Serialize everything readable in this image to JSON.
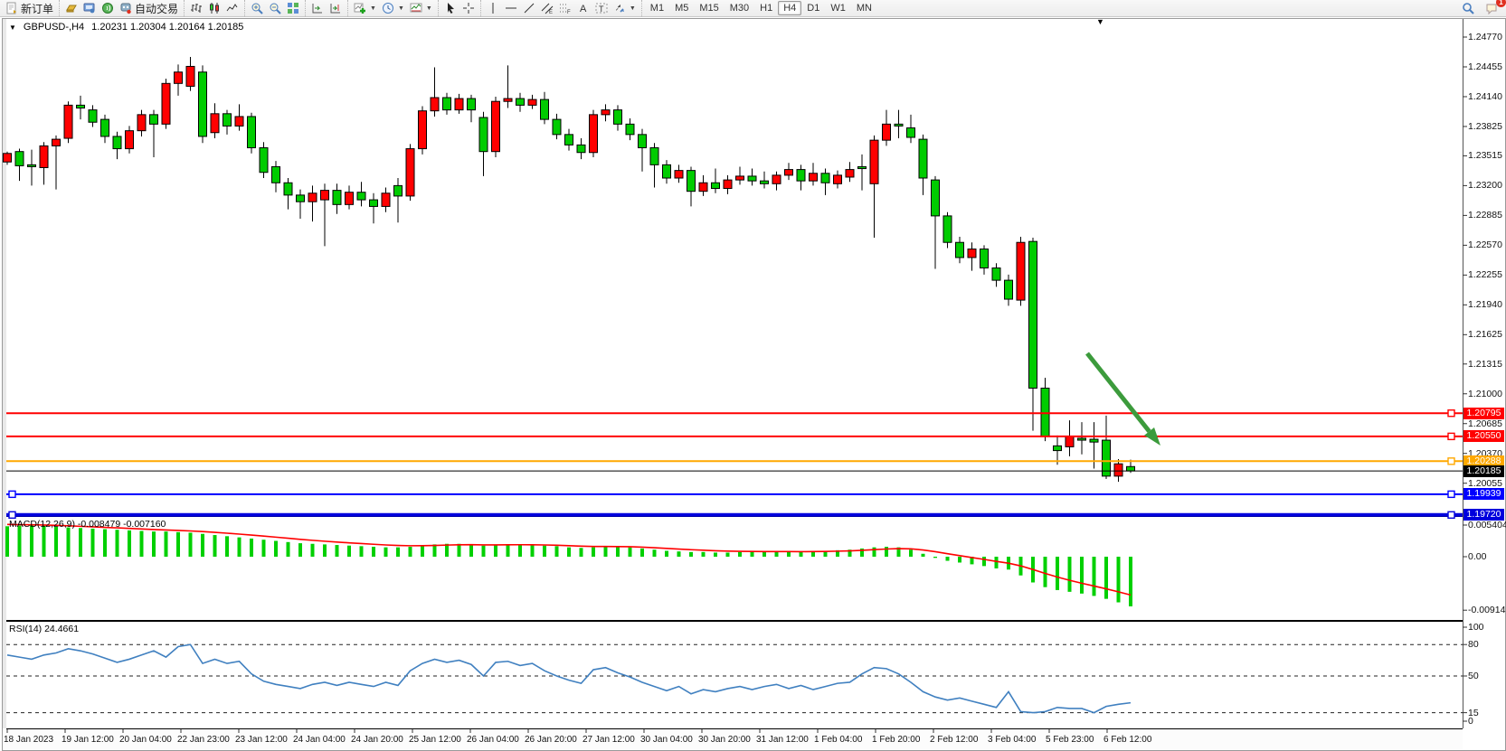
{
  "toolbar": {
    "new_order": "新订单",
    "autotrading": "自动交易",
    "timeframes": [
      "M1",
      "M5",
      "M15",
      "M30",
      "H1",
      "H4",
      "D1",
      "W1",
      "MN"
    ],
    "active_timeframe": "H4",
    "notification_badge": "1"
  },
  "chart_header": {
    "collapse_marker": "▼",
    "symbol_period": "GBPUSD-,H4",
    "ohlc_line": "1.20231 1.20304 1.20164 1.20185"
  },
  "chart_data": {
    "type": "candlestick",
    "symbol": "GBPUSD-",
    "timeframe": "H4",
    "title": "GBPUSD-,H4  1.20231 1.20304 1.20164 1.20185",
    "ohlc_display": {
      "open": "1.20231",
      "high": "1.20304",
      "low": "1.20164",
      "close": "1.20185"
    },
    "colors": {
      "bull_up": "#ff0000",
      "bear_down": "#00cc00",
      "wick": "#000000",
      "macd_hist": "#00d000",
      "macd_signal": "#ff0000",
      "rsi_line": "#4080c0",
      "arrow": "#3c9b3c"
    },
    "price_axis_labels": [
      "1.24770",
      "1.24455",
      "1.24140",
      "1.23825",
      "1.23515",
      "1.23200",
      "1.22885",
      "1.22570",
      "1.22255",
      "1.21940",
      "1.21625",
      "1.21315",
      "1.21000",
      "1.20685",
      "1.20370",
      "1.20055"
    ],
    "levels": [
      {
        "price": 1.20795,
        "label": "1.20795",
        "color": "#ff0000",
        "width": 2,
        "handles": [
          "right"
        ]
      },
      {
        "price": 1.2055,
        "label": "1.20550",
        "color": "#ff0000",
        "width": 2,
        "handles": [
          "right"
        ]
      },
      {
        "price": 1.20288,
        "label": "1.20288",
        "color": "#ffa800",
        "width": 2,
        "handles": [
          "right"
        ]
      },
      {
        "price": 1.20185,
        "label": "1.20185",
        "color": "#000000",
        "width": 1,
        "handles": []
      },
      {
        "price": 1.19939,
        "label": "1.19939",
        "color": "#0000ff",
        "width": 2,
        "handles": [
          "left",
          "right"
        ]
      },
      {
        "price": 1.1972,
        "label": "1.19720",
        "color": "#0000dd",
        "width": 4,
        "handles": [
          "left",
          "right"
        ]
      }
    ],
    "x_axis_labels": [
      "18 Jan 2023",
      "19 Jan 12:00",
      "20 Jan 04:00",
      "22 Jan 23:00",
      "23 Jan 12:00",
      "24 Jan 04:00",
      "24 Jan 20:00",
      "25 Jan 12:00",
      "26 Jan 04:00",
      "26 Jan 20:00",
      "27 Jan 12:00",
      "30 Jan 04:00",
      "30 Jan 20:00",
      "31 Jan 12:00",
      "1 Feb 04:00",
      "1 Feb 20:00",
      "2 Feb 12:00",
      "3 Feb 04:00",
      "5 Feb 23:00",
      "6 Feb 12:00"
    ],
    "candles": [
      [
        1.2345,
        1.2356,
        1.2342,
        1.2354
      ],
      [
        1.2356,
        1.2359,
        1.2325,
        1.2341
      ],
      [
        1.2342,
        1.2358,
        1.232,
        1.234
      ],
      [
        1.2339,
        1.2366,
        1.2321,
        1.2362
      ],
      [
        1.2362,
        1.2373,
        1.2316,
        1.2369
      ],
      [
        1.237,
        1.2409,
        1.2365,
        1.2405
      ],
      [
        1.2405,
        1.2415,
        1.239,
        1.2402
      ],
      [
        1.24,
        1.2405,
        1.2382,
        1.2387
      ],
      [
        1.239,
        1.2395,
        1.2365,
        1.2372
      ],
      [
        1.2372,
        1.2377,
        1.2348,
        1.2359
      ],
      [
        1.2359,
        1.2383,
        1.2354,
        1.2378
      ],
      [
        1.2378,
        1.24,
        1.2372,
        1.2395
      ],
      [
        1.2395,
        1.24,
        1.235,
        1.2385
      ],
      [
        1.2385,
        1.2433,
        1.238,
        1.2428
      ],
      [
        1.2428,
        1.2448,
        1.2415,
        1.244
      ],
      [
        1.2425,
        1.2456,
        1.242,
        1.2446
      ],
      [
        1.244,
        1.2447,
        1.2365,
        1.2372
      ],
      [
        1.2376,
        1.2407,
        1.237,
        1.2396
      ],
      [
        1.2396,
        1.24,
        1.2374,
        1.2383
      ],
      [
        1.2383,
        1.2406,
        1.2378,
        1.2393
      ],
      [
        1.2393,
        1.2397,
        1.2354,
        1.236
      ],
      [
        1.236,
        1.2366,
        1.2328,
        1.2334
      ],
      [
        1.234,
        1.2346,
        1.2313,
        1.2323
      ],
      [
        1.2323,
        1.2328,
        1.2295,
        1.231
      ],
      [
        1.231,
        1.2316,
        1.2285,
        1.2303
      ],
      [
        1.2303,
        1.232,
        1.2282,
        1.2312
      ],
      [
        1.2305,
        1.2322,
        1.2256,
        1.2315
      ],
      [
        1.2315,
        1.2322,
        1.229,
        1.23
      ],
      [
        1.23,
        1.232,
        1.2295,
        1.2313
      ],
      [
        1.2313,
        1.2324,
        1.2298,
        1.2305
      ],
      [
        1.2305,
        1.2312,
        1.228,
        1.2298
      ],
      [
        1.2298,
        1.2318,
        1.2292,
        1.2312
      ],
      [
        1.232,
        1.2328,
        1.2281,
        1.2309
      ],
      [
        1.2309,
        1.2364,
        1.2304,
        1.2359
      ],
      [
        1.2359,
        1.2404,
        1.2353,
        1.2399
      ],
      [
        1.2399,
        1.2445,
        1.2393,
        1.2413
      ],
      [
        1.2413,
        1.2418,
        1.2395,
        1.24
      ],
      [
        1.24,
        1.2417,
        1.2396,
        1.2412
      ],
      [
        1.2412,
        1.2416,
        1.2387,
        1.24
      ],
      [
        1.2392,
        1.2398,
        1.233,
        1.2356
      ],
      [
        1.2356,
        1.2414,
        1.235,
        1.2409
      ],
      [
        1.2409,
        1.2447,
        1.2402,
        1.2412
      ],
      [
        1.2412,
        1.2418,
        1.2398,
        1.2405
      ],
      [
        1.2405,
        1.2416,
        1.2401,
        1.2411
      ],
      [
        1.2411,
        1.2419,
        1.2385,
        1.239
      ],
      [
        1.239,
        1.2396,
        1.2369,
        1.2374
      ],
      [
        1.2374,
        1.238,
        1.2357,
        1.2363
      ],
      [
        1.2363,
        1.237,
        1.2348,
        1.2355
      ],
      [
        1.2355,
        1.24,
        1.235,
        1.2395
      ],
      [
        1.2395,
        1.2406,
        1.2388,
        1.24
      ],
      [
        1.24,
        1.2405,
        1.2378,
        1.2385
      ],
      [
        1.2385,
        1.2391,
        1.2368,
        1.2374
      ],
      [
        1.2374,
        1.238,
        1.2335,
        1.236
      ],
      [
        1.236,
        1.2365,
        1.2318,
        1.2342
      ],
      [
        1.2342,
        1.2347,
        1.2322,
        1.2328
      ],
      [
        1.2328,
        1.2342,
        1.2323,
        1.2336
      ],
      [
        1.2336,
        1.234,
        1.2298,
        1.2314
      ],
      [
        1.2314,
        1.2331,
        1.2309,
        1.2323
      ],
      [
        1.2323,
        1.2338,
        1.2312,
        1.2317
      ],
      [
        1.2317,
        1.2331,
        1.2311,
        1.2326
      ],
      [
        1.2326,
        1.234,
        1.2321,
        1.233
      ],
      [
        1.233,
        1.2338,
        1.232,
        1.2325
      ],
      [
        1.2325,
        1.2335,
        1.2317,
        1.2322
      ],
      [
        1.2322,
        1.2335,
        1.2315,
        1.2331
      ],
      [
        1.2331,
        1.2344,
        1.2326,
        1.2337
      ],
      [
        1.2337,
        1.2342,
        1.2315,
        1.2325
      ],
      [
        1.2325,
        1.2344,
        1.232,
        1.2333
      ],
      [
        1.2333,
        1.2338,
        1.231,
        1.2323
      ],
      [
        1.2322,
        1.2336,
        1.2317,
        1.2331
      ],
      [
        1.2329,
        1.2345,
        1.2324,
        1.2337
      ],
      [
        1.234,
        1.2353,
        1.2315,
        1.2338
      ],
      [
        1.2322,
        1.2373,
        1.2265,
        1.2368
      ],
      [
        1.2368,
        1.24,
        1.2362,
        1.2385
      ],
      [
        1.2385,
        1.24,
        1.237,
        1.2383
      ],
      [
        1.2381,
        1.2395,
        1.2365,
        1.2371
      ],
      [
        1.2369,
        1.2374,
        1.231,
        1.2328
      ],
      [
        1.2326,
        1.233,
        1.2232,
        1.2288
      ],
      [
        1.2288,
        1.2292,
        1.2254,
        1.226
      ],
      [
        1.226,
        1.2266,
        1.2238,
        1.2244
      ],
      [
        1.2244,
        1.226,
        1.223,
        1.2253
      ],
      [
        1.2253,
        1.2257,
        1.2226,
        1.2233
      ],
      [
        1.2233,
        1.2238,
        1.2213,
        1.222
      ],
      [
        1.222,
        1.2226,
        1.2193,
        1.22
      ],
      [
        1.2199,
        1.2266,
        1.2193,
        1.226
      ],
      [
        1.2261,
        1.2265,
        1.2061,
        1.2106
      ],
      [
        1.2106,
        1.2117,
        1.205,
        1.2055
      ],
      [
        1.2045,
        1.2056,
        1.2025,
        1.204
      ],
      [
        1.2044,
        1.2072,
        1.2034,
        1.2055
      ],
      [
        1.2053,
        1.207,
        1.2036,
        1.2051
      ],
      [
        1.2052,
        1.207,
        1.2021,
        1.2049
      ],
      [
        1.2051,
        1.2077,
        1.201,
        1.2013
      ],
      [
        1.2013,
        1.2031,
        1.2007,
        1.2026
      ],
      [
        1.20231,
        1.20304,
        1.20164,
        1.20185
      ]
    ],
    "macd": {
      "label": "MACD(12,26,9)",
      "values_label": "-0.008479 -0.007160",
      "axis_labels": [
        "0.005404",
        "0.00",
        "-0.00914"
      ],
      "histogram": [
        0.0052,
        0.0053,
        0.0054,
        0.0053,
        0.0051,
        0.005,
        0.0049,
        0.0048,
        0.0047,
        0.0046,
        0.0045,
        0.0044,
        0.0043,
        0.0043,
        0.0042,
        0.0041,
        0.0039,
        0.0037,
        0.0035,
        0.0033,
        0.0031,
        0.0029,
        0.0027,
        0.0025,
        0.0023,
        0.0022,
        0.0021,
        0.002,
        0.0019,
        0.0018,
        0.0017,
        0.0016,
        0.0016,
        0.0017,
        0.0019,
        0.0021,
        0.0022,
        0.0022,
        0.0021,
        0.0019,
        0.002,
        0.0021,
        0.0021,
        0.002,
        0.0019,
        0.0018,
        0.0016,
        0.0015,
        0.0016,
        0.0017,
        0.0017,
        0.0016,
        0.0014,
        0.0012,
        0.001,
        0.0009,
        0.0008,
        0.0008,
        0.0007,
        0.0007,
        0.0008,
        0.0008,
        0.0008,
        0.0009,
        0.0009,
        0.0008,
        0.0009,
        0.001,
        0.0011,
        0.0012,
        0.0014,
        0.0016,
        0.0017,
        0.0016,
        0.0012,
        0.0005,
        -0.0002,
        -0.0007,
        -0.001,
        -0.0013,
        -0.0016,
        -0.002,
        -0.0022,
        -0.0032,
        -0.0044,
        -0.0052,
        -0.0057,
        -0.006,
        -0.0063,
        -0.0067,
        -0.0072,
        -0.0078,
        -0.008479
      ]
    },
    "rsi": {
      "label": "RSI(14) 24.4661",
      "axis_labels": [
        "100",
        "80",
        "50",
        "15",
        "0"
      ],
      "dashed_levels": [
        80,
        50,
        15
      ],
      "values": [
        70,
        68,
        66,
        70,
        72,
        76,
        74,
        71,
        67,
        63,
        66,
        70,
        74,
        68,
        78,
        80,
        62,
        66,
        62,
        64,
        52,
        45,
        42,
        40,
        38,
        42,
        44,
        41,
        44,
        42,
        40,
        44,
        41,
        55,
        62,
        66,
        63,
        65,
        61,
        50,
        63,
        64,
        60,
        62,
        55,
        50,
        46,
        43,
        56,
        58,
        53,
        49,
        44,
        40,
        36,
        40,
        33,
        37,
        35,
        38,
        40,
        37,
        40,
        42,
        38,
        41,
        37,
        40,
        43,
        44,
        52,
        58,
        57,
        52,
        44,
        35,
        30,
        27,
        29,
        26,
        23,
        20,
        35,
        16,
        15,
        16,
        20,
        19,
        19,
        15,
        21,
        23,
        24.4661
      ]
    },
    "annotation_arrow": {
      "from": [
        1202,
        391
      ],
      "to": [
        1283,
        493
      ],
      "color": "#3c9b3c"
    },
    "shift_marker": "▼"
  }
}
